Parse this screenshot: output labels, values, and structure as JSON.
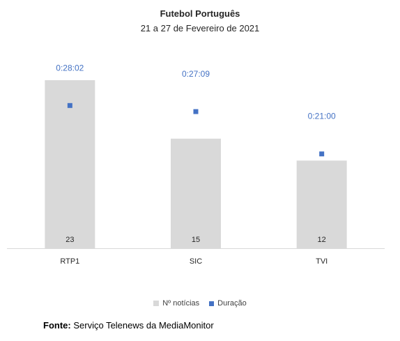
{
  "chart_data": {
    "type": "bar",
    "title": "Futebol Português",
    "subtitle": "21 a 27 de Fevereiro de 2021",
    "categories": [
      "RTP1",
      "SIC",
      "TVI"
    ],
    "series": [
      {
        "name": "Nº notícias",
        "kind": "bar",
        "values": [
          23,
          15,
          12
        ],
        "data_labels": [
          "23",
          "15",
          "12"
        ],
        "color": "#d9d9d9"
      },
      {
        "name": "Duração",
        "kind": "point",
        "values_seconds": [
          1682,
          1629,
          1260
        ],
        "data_labels": [
          "0:28:02",
          "0:27:09",
          "0:21:00"
        ],
        "color": "#4472c4"
      }
    ],
    "legend_position": "bottom",
    "grid": false
  },
  "source": {
    "label": "Fonte:",
    "text": "Serviço Telenews da MediaMonitor"
  }
}
